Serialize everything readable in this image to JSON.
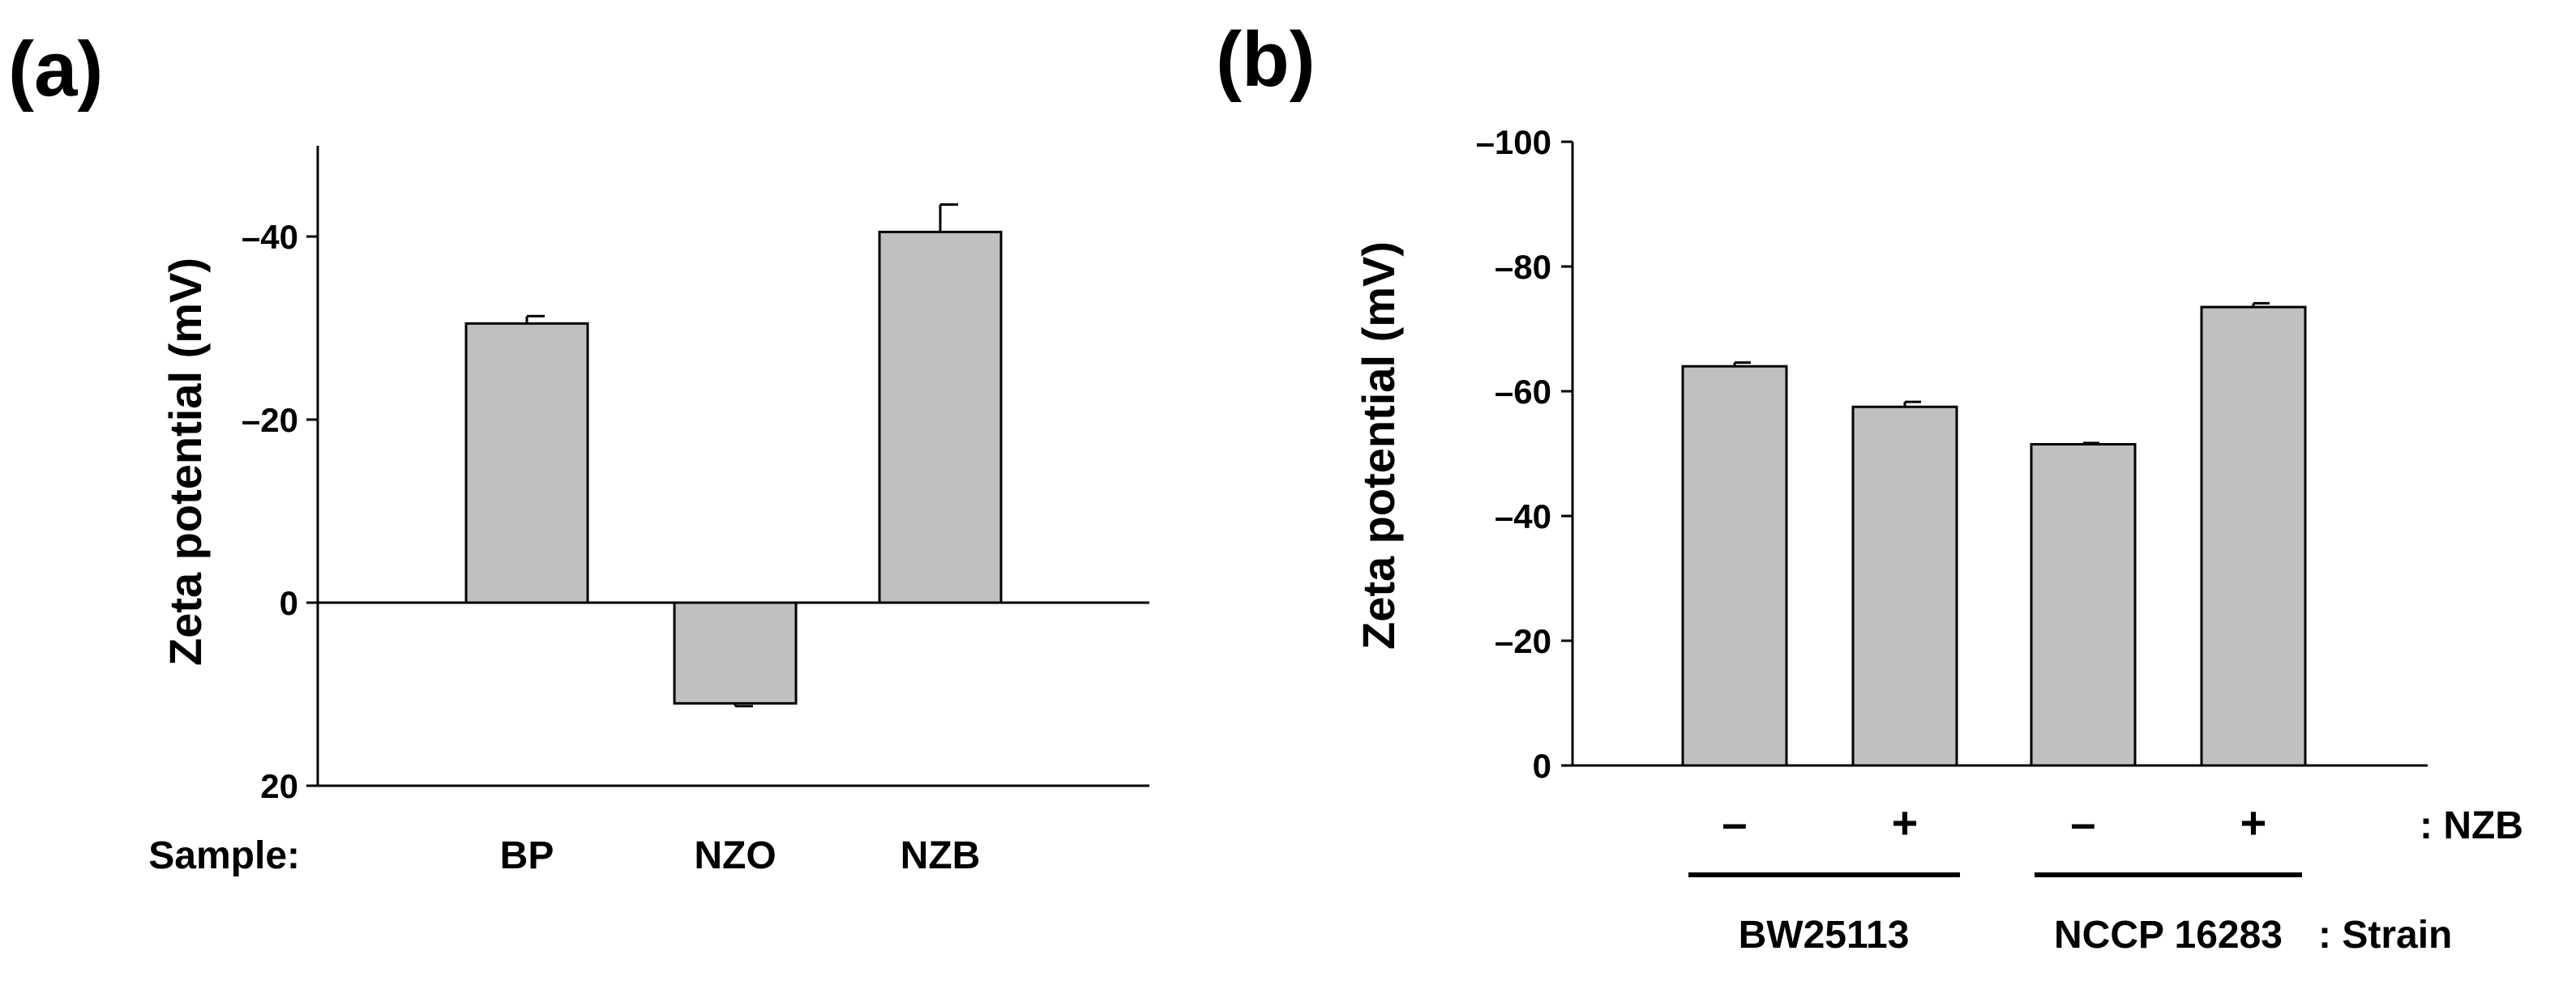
{
  "chart_data": [
    {
      "panel": "(a)",
      "type": "bar",
      "ylabel": "Zeta potential (mV)",
      "category_axis_label": "Sample:",
      "categories": [
        "BP",
        "NZO",
        "NZB"
      ],
      "values": [
        -30.5,
        11,
        -40.5
      ],
      "errors": [
        0.8,
        0.3,
        3.0
      ],
      "ylim": [
        20,
        -50
      ],
      "yticks": [
        20,
        0,
        -20,
        -40
      ],
      "ytick_labels": [
        "20",
        "0",
        "–20",
        "–40"
      ]
    },
    {
      "panel": "(b)",
      "type": "bar",
      "ylabel": "Zeta potential (mV)",
      "categories": [
        "–",
        "+",
        "–",
        "+"
      ],
      "values": [
        -64.0,
        -57.5,
        -51.5,
        -73.5
      ],
      "errors": [
        0.6,
        0.8,
        0.2,
        0.6
      ],
      "ylim": [
        0,
        -100
      ],
      "yticks": [
        0,
        -20,
        -40,
        -60,
        -80,
        -100
      ],
      "ytick_labels": [
        "0",
        "–20",
        "–40",
        "–60",
        "–80",
        "–100"
      ],
      "treatment_label": ": NZB",
      "strain_label": ": Strain",
      "groups": [
        "BW25113",
        "NCCP 16283"
      ]
    }
  ]
}
